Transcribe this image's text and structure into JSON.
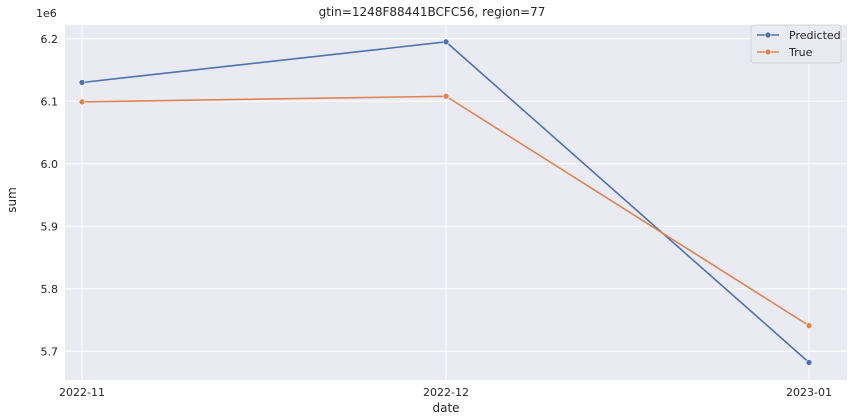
{
  "chart_data": {
    "type": "line",
    "title": "gtin=1248F88441BCFC56, region=77",
    "xlabel": "date",
    "ylabel": "sum",
    "y_scale_label": "1e6",
    "categories": [
      "2022-11",
      "2022-12",
      "2023-01"
    ],
    "y_ticks": [
      5.7,
      5.8,
      5.9,
      6.0,
      6.1,
      6.2
    ],
    "y_tick_labels": [
      "5.7",
      "5.8",
      "5.9",
      "6.0",
      "6.1",
      "6.2"
    ],
    "ylim": [
      5.654,
      6.222
    ],
    "series": [
      {
        "name": "Predicted",
        "color": "#4c72b0",
        "values": [
          6.13,
          6.195,
          5.682
        ]
      },
      {
        "name": "True",
        "color": "#dd8452",
        "values": [
          6.099,
          6.108,
          5.741
        ]
      }
    ],
    "grid": true,
    "legend_position": "top-right",
    "background_color": "#eaeaf2"
  }
}
